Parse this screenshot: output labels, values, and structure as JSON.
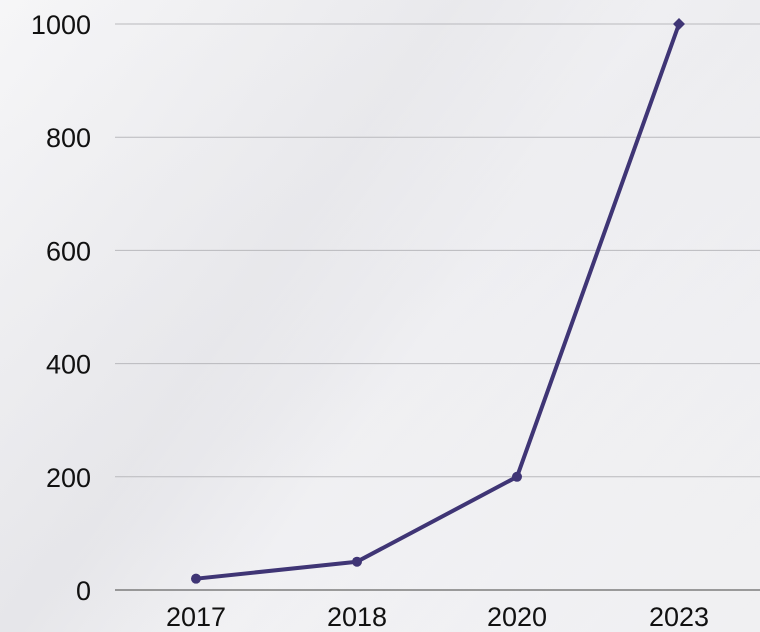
{
  "chart_data": {
    "type": "line",
    "title": "",
    "xlabel": "",
    "ylabel": "",
    "categories": [
      "2017",
      "2018",
      "2020",
      "2023"
    ],
    "series": [
      {
        "values": [
          20,
          50,
          200,
          1000
        ],
        "color": "#3f3575"
      }
    ],
    "ylim": [
      0,
      1000
    ],
    "yticks": [
      "0",
      "200",
      "400",
      "600",
      "800",
      "1000"
    ],
    "grid": "horizontal",
    "legend": "none"
  }
}
